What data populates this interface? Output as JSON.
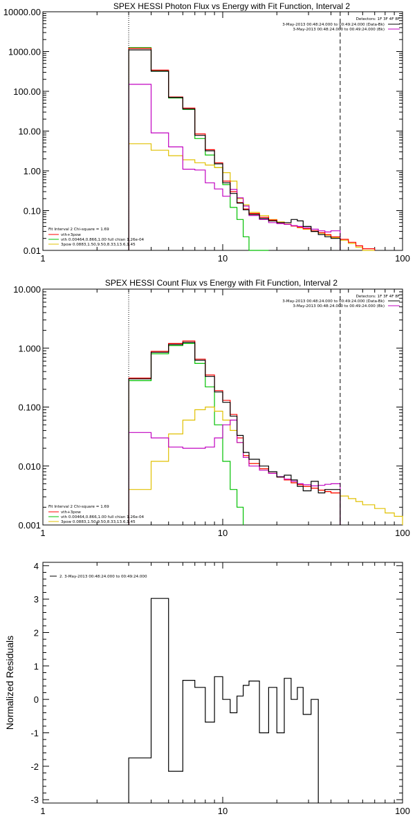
{
  "charts": [
    {
      "title": "SPEX HESSI Photon Flux vs Energy with Fit Function, Interval 2",
      "detectors": "Detectors: 1F 3F 4F 8F",
      "legend_right": [
        {
          "text": "3-May-2013 00:48:24.000 to 00:49:24.000 (Data-Bk)",
          "color": "#000000"
        },
        {
          "text": "3-May-2013 00:48:24.000 to 00:49:24.000 (Bk)",
          "color": "#c000c0"
        }
      ],
      "fit_legend": [
        {
          "text": "Fit Interval 2   Chi-square = 1.69",
          "color": null
        },
        {
          "text": "vth+3pow",
          "color": "#ff0000"
        },
        {
          "text": "vth 0.00464,0.866,1.00   full chian 1.26e-04",
          "color": "#00c000"
        },
        {
          "text": "3pow 0.0883,1.50,9.50,8.33,13.6,1.45",
          "color": "#e0c000"
        }
      ],
      "x_ticks": [
        "1",
        "10",
        "100"
      ],
      "y_ticks": [
        "0.01",
        "0.10",
        "1.00",
        "10.00",
        "100.00",
        "1000.00",
        "10000.00"
      ],
      "ylabel": ""
    },
    {
      "title": "SPEX HESSI Count Flux vs Energy with Fit Function, Interval 2",
      "detectors": "Detectors: 1F 3F 4F 8F",
      "legend_right": [
        {
          "text": "3-May-2013 00:48:24.000 to 00:49:24.000 (Data-Bk)",
          "color": "#000000"
        },
        {
          "text": "3-May-2013 00:48:24.000 to 00:49:24.000 (Bk)",
          "color": "#c000c0"
        }
      ],
      "fit_legend": [
        {
          "text": "Fit Interval 2   Chi-square = 1.69",
          "color": null
        },
        {
          "text": "vth+3pow",
          "color": "#ff0000"
        },
        {
          "text": "vth 0.00464,0.866,1.00   full chian 1.26e-04",
          "color": "#00c000"
        },
        {
          "text": "3pow 0.0883,1.50,9.50,8.33,13.6,1.45",
          "color": "#e0c000"
        }
      ],
      "x_ticks": [
        "1",
        "10",
        "100"
      ],
      "y_ticks": [
        "0.001",
        "0.010",
        "0.100",
        "1.000",
        "10.000"
      ],
      "ylabel": ""
    },
    {
      "title": "",
      "legend_right": [],
      "legend_left": [
        {
          "text": "2. 3-May-2013 00:48:24.000 to 00:49:24.000",
          "color": "#000000"
        }
      ],
      "fit_legend": [],
      "x_ticks": [
        "1",
        "10",
        "100"
      ],
      "y_ticks": [
        "-3",
        "-2",
        "-1",
        "0",
        "1",
        "2",
        "3",
        "4"
      ],
      "ylabel": "Normalized Residuals"
    }
  ],
  "chart_data": [
    {
      "type": "line",
      "title": "SPEX HESSI Photon Flux vs Energy with Fit Function, Interval 2",
      "xscale": "log",
      "yscale": "log",
      "xlim": [
        1,
        100
      ],
      "ylim": [
        0.01,
        10000
      ],
      "vlines": [
        {
          "x": 3,
          "style": "dotted"
        },
        {
          "x": 45,
          "style": "dashed"
        }
      ],
      "x_edges": [
        3,
        4,
        5,
        6,
        7,
        8,
        9,
        10,
        11,
        12,
        13,
        14,
        16,
        18,
        20,
        22,
        24,
        26,
        28,
        31,
        34,
        37,
        40,
        45,
        50,
        55,
        60,
        70
      ],
      "series": [
        {
          "name": "Data-Bk",
          "color": "#000000",
          "values": [
            1100,
            320,
            70,
            36,
            7.8,
            3.2,
            1.5,
            0.5,
            0.27,
            0.155,
            0.105,
            0.08,
            0.063,
            0.055,
            0.05,
            0.05,
            0.06,
            0.055,
            0.04,
            0.03,
            0.025,
            0.022,
            0.02
          ]
        },
        {
          "name": "Bk",
          "color": "#c000c0",
          "values": [
            150,
            9,
            4,
            1.1,
            1.05,
            0.5,
            0.35,
            0.23,
            0.34,
            0.21,
            0.13,
            0.075,
            0.06,
            0.05,
            0.047,
            0.045,
            0.042,
            0.04,
            0.037,
            0.034,
            0.031,
            0.029,
            0.031
          ]
        },
        {
          "name": "vth+3pow",
          "color": "#ff0000",
          "values": [
            1200,
            340,
            72,
            38,
            8.5,
            3.4,
            1.6,
            0.55,
            0.3,
            0.16,
            0.11,
            0.085,
            0.068,
            0.058,
            0.05,
            0.045,
            0.041,
            0.038,
            0.035,
            0.031,
            0.028,
            0.025,
            0.022,
            0.019,
            0.016,
            0.013,
            0.011
          ]
        },
        {
          "name": "vth",
          "color": "#00c000",
          "values": [
            1250,
            330,
            68,
            35,
            6.5,
            2.5,
            1.2,
            0.45,
            0.12,
            0.06,
            0.022,
            0.009,
            0.003
          ]
        },
        {
          "name": "3pow",
          "color": "#e0c000",
          "values": [
            4.8,
            3.3,
            2.4,
            1.9,
            1.6,
            1.4,
            1.2,
            0.9,
            0.55,
            0.2,
            0.14,
            0.09,
            0.075,
            0.06,
            0.052,
            0.046,
            0.041,
            0.037,
            0.034,
            0.03,
            0.027,
            0.024,
            0.021,
            0.018,
            0.015,
            0.012,
            0.01
          ]
        }
      ]
    },
    {
      "type": "line",
      "title": "SPEX HESSI Count Flux vs Energy with Fit Function, Interval 2",
      "xscale": "log",
      "yscale": "log",
      "xlim": [
        1,
        100
      ],
      "ylim": [
        0.001,
        10
      ],
      "vlines": [
        {
          "x": 3,
          "style": "dotted"
        },
        {
          "x": 45,
          "style": "dashed"
        }
      ],
      "x_edges": [
        3,
        4,
        5,
        6,
        7,
        8,
        9,
        10,
        11,
        12,
        13,
        14,
        16,
        18,
        20,
        22,
        24,
        26,
        28,
        31,
        34,
        37,
        40,
        45,
        50,
        55,
        60,
        70,
        80,
        90,
        100
      ],
      "series": [
        {
          "name": "Data-Bk",
          "color": "#000000",
          "values": [
            0.3,
            0.85,
            1.15,
            1.25,
            0.62,
            0.33,
            0.18,
            0.12,
            0.07,
            0.033,
            0.017,
            0.013,
            0.01,
            0.008,
            0.0065,
            0.007,
            0.0058,
            0.0045,
            0.0038,
            0.0055,
            0.0035,
            0.004,
            0.004
          ]
        },
        {
          "name": "Bk",
          "color": "#c000c0",
          "values": [
            0.037,
            0.03,
            0.021,
            0.02,
            0.02,
            0.021,
            0.03,
            0.05,
            0.06,
            0.025,
            0.014,
            0.01,
            0.0085,
            0.0075,
            0.0066,
            0.006,
            0.0055,
            0.005,
            0.0048,
            0.0046,
            0.0047,
            0.0049,
            0.005
          ]
        },
        {
          "name": "vth+3pow",
          "color": "#ff0000",
          "values": [
            0.31,
            0.88,
            1.2,
            1.32,
            0.65,
            0.35,
            0.19,
            0.13,
            0.075,
            0.03,
            0.015,
            0.011,
            0.009,
            0.0075,
            0.0065,
            0.0058,
            0.0052,
            0.0048,
            0.0045,
            0.0042,
            0.0039,
            0.0037,
            0.0035
          ]
        },
        {
          "name": "vth",
          "color": "#00c000",
          "values": [
            0.28,
            0.8,
            1.1,
            1.2,
            0.55,
            0.22,
            0.05,
            0.012,
            0.004,
            0.002
          ]
        },
        {
          "name": "3pow",
          "color": "#e0c000",
          "values": [
            0.004,
            0.012,
            0.035,
            0.06,
            0.09,
            0.1,
            0.085,
            0.06,
            0.04,
            0.025,
            0.015,
            0.011,
            0.009,
            0.0075,
            0.0065,
            0.0058,
            0.0052,
            0.0048,
            0.0045,
            0.0042,
            0.0039,
            0.0037,
            0.0035,
            0.0031,
            0.0028,
            0.0025,
            0.0022,
            0.0019,
            0.0016,
            0.0014
          ]
        }
      ]
    },
    {
      "type": "line",
      "title": "",
      "ylabel": "Normalized Residuals",
      "xscale": "log",
      "yscale": "linear",
      "xlim": [
        1,
        100
      ],
      "ylim": [
        -3.1,
        4.1
      ],
      "x_edges": [
        3,
        4,
        5,
        6,
        7,
        8,
        9,
        10,
        11,
        12,
        13,
        14,
        16,
        18,
        20,
        22,
        24,
        26,
        28,
        31,
        34,
        37,
        40,
        45
      ],
      "series": [
        {
          "name": "2. 3-May-2013 00:48:24.000 to 00:49:24.000",
          "color": "#000000",
          "values": [
            -1.75,
            3.02,
            -2.15,
            0.57,
            0.36,
            -0.68,
            0.68,
            0.0,
            -0.4,
            0.1,
            0.42,
            0.55,
            -1.0,
            0.36,
            -1.0,
            0.63,
            0.0,
            0.36,
            -0.45,
            0.0
          ]
        }
      ]
    }
  ]
}
